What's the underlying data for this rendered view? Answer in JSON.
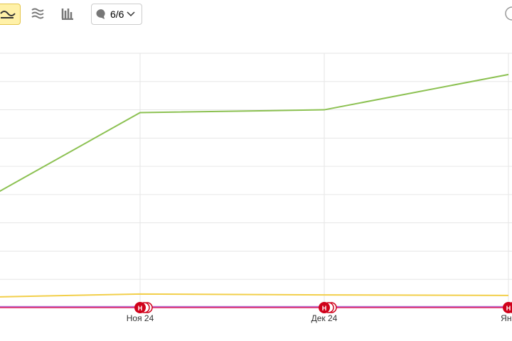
{
  "toolbar": {
    "comments": "6/6"
  },
  "chart_data": {
    "type": "line",
    "categories": [
      null,
      "Ноя 24",
      "Дек 24",
      "Янв"
    ],
    "series": [
      {
        "color": "#8cc152",
        "values": [
          3.25,
          6.9,
          7.0,
          8.25
        ]
      },
      {
        "color": "#f2cf4a",
        "values": [
          0.35,
          0.48,
          0.45,
          0.43
        ]
      },
      {
        "color": "#b66bd0",
        "values": [
          0.03,
          0.03,
          0.03,
          0.03
        ]
      }
    ],
    "markers": [
      "Н",
      "Н",
      "Н"
    ],
    "ylim": [
      0,
      9
    ],
    "yticks": [
      1,
      2,
      3,
      4,
      5,
      6,
      7,
      8,
      9
    ],
    "grid": true
  }
}
